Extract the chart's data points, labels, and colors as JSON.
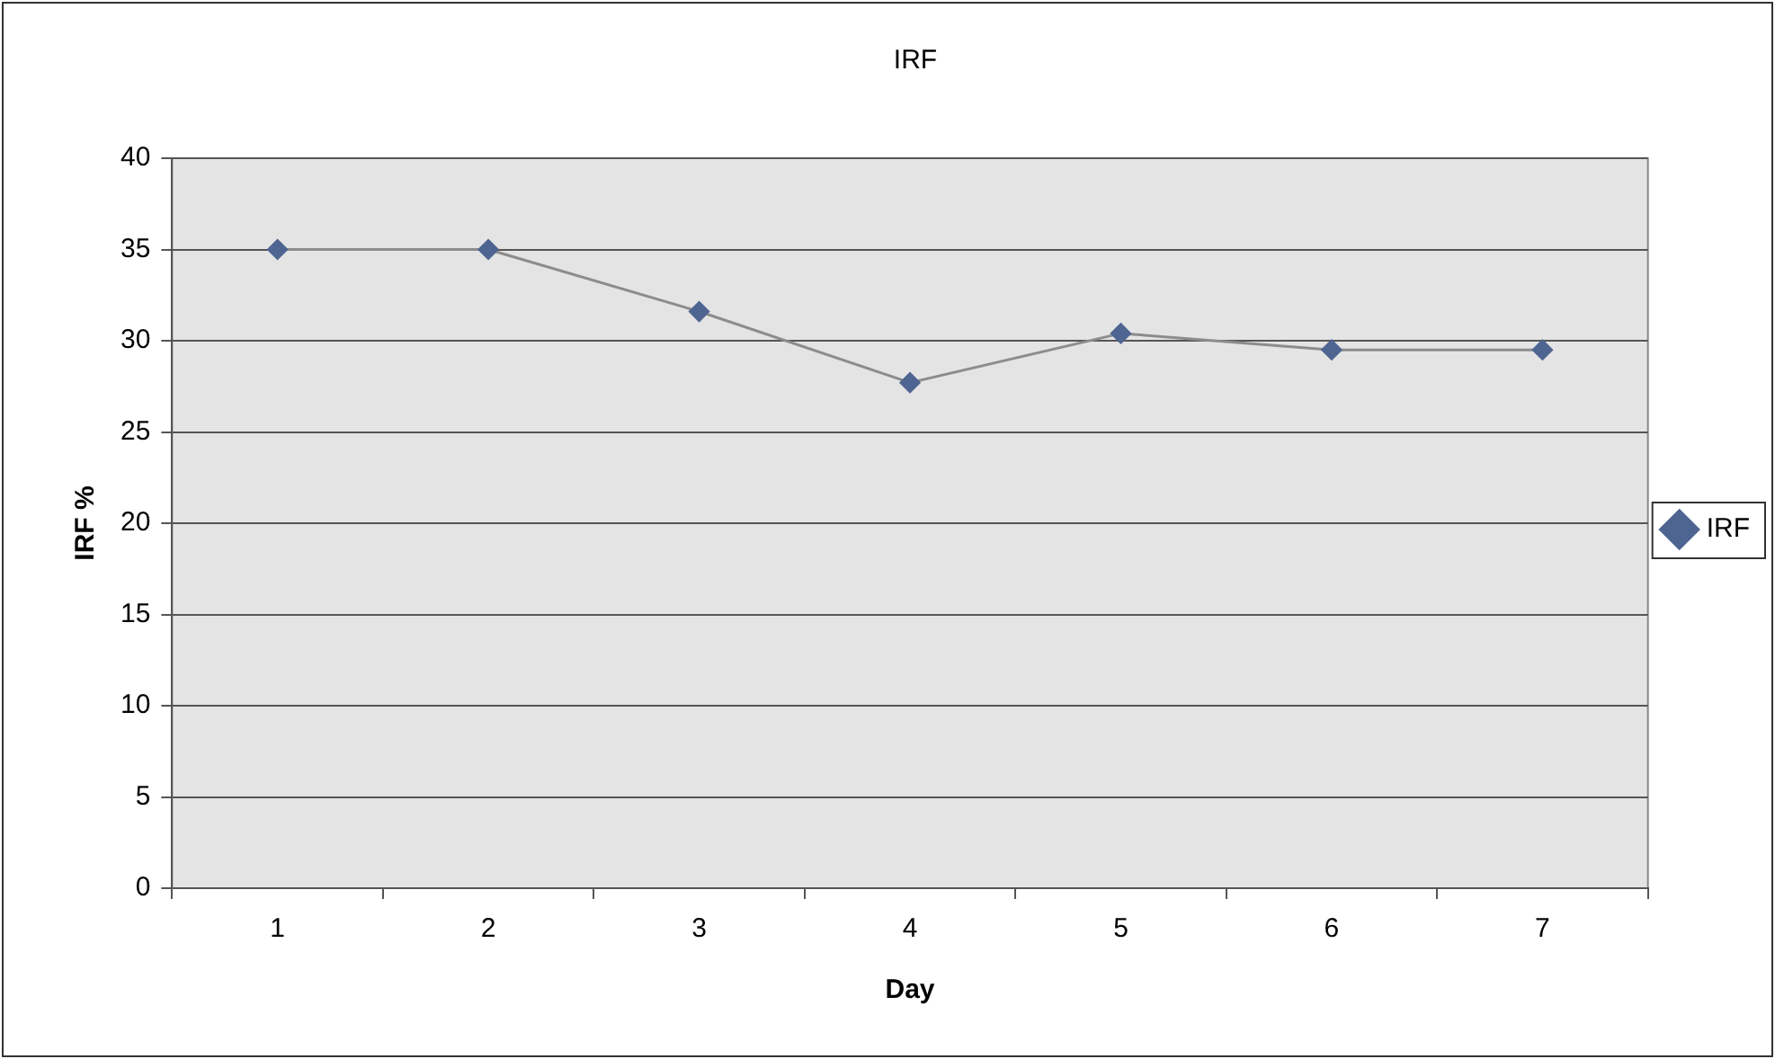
{
  "chart_data": {
    "type": "line",
    "title": "IRF",
    "xlabel": "Day",
    "ylabel": "IRF %",
    "categories": [
      "1",
      "2",
      "3",
      "4",
      "5",
      "6",
      "7"
    ],
    "series": [
      {
        "name": "IRF",
        "color": "#4f6591",
        "values": [
          35,
          35,
          31.6,
          27.7,
          30.4,
          29.5,
          29.5
        ]
      }
    ],
    "ylim": [
      0,
      40
    ],
    "yticks": [
      0,
      5,
      10,
      15,
      20,
      25,
      30,
      35,
      40
    ],
    "grid": "y",
    "legend": "right",
    "marker": "diamond",
    "line_style": "solid"
  }
}
